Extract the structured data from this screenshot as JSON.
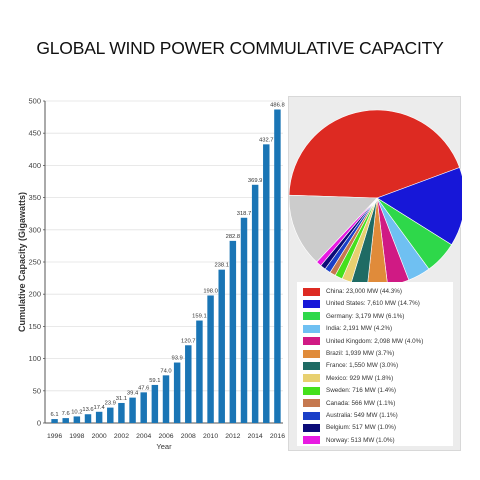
{
  "title": "GLOBAL WIND POWER COMMULATIVE CAPACITY",
  "colors": {
    "bar": "#1a75b5",
    "axis": "#555555",
    "grid": "#e2e2e2"
  },
  "chart_data": [
    {
      "type": "bar",
      "xlabel": "Year",
      "ylabel": "Cumulative Capacity (Gigawatts)",
      "ylim": [
        0,
        500
      ],
      "yticks": [
        "0",
        "50",
        "100",
        "150",
        "200",
        "250",
        "300",
        "350",
        "400",
        "450",
        "500"
      ],
      "xticks": [
        "1996",
        "1998",
        "2000",
        "2002",
        "2004",
        "2006",
        "2008",
        "2010",
        "2012",
        "2014",
        "2016"
      ],
      "categories": [
        "1996",
        "1997",
        "1998",
        "1999",
        "2000",
        "2001",
        "2002",
        "2003",
        "2004",
        "2005",
        "2006",
        "2007",
        "2008",
        "2009",
        "2010",
        "2011",
        "2012",
        "2013",
        "2014",
        "2015",
        "2016"
      ],
      "values": [
        6.1,
        7.6,
        10.2,
        13.6,
        17.4,
        23.9,
        31.1,
        39.4,
        47.6,
        59.1,
        74.0,
        93.9,
        120.7,
        159.1,
        198.0,
        238.1,
        282.8,
        318.7,
        369.9,
        432.7,
        486.8
      ],
      "data_labels": [
        "6.1",
        "7.6",
        "10.2",
        "13.6",
        "17.4",
        "23.9",
        "31.1",
        "39.4",
        "47.6",
        "59.1",
        "74.0",
        "93.9",
        "120.7",
        "159.1",
        "198.0",
        "238.1",
        "282.8",
        "318.7",
        "369.9",
        "432.7",
        "486.8"
      ],
      "grid": "horizontal"
    },
    {
      "type": "pie",
      "legend_placement": "bottom",
      "slices": [
        {
          "label": "China: 23,000 MW (44.3%)",
          "value": 44.3,
          "color": "#dd2a22"
        },
        {
          "label": "United States: 7,610 MW (14.7%)",
          "value": 14.7,
          "color": "#1717d8"
        },
        {
          "label": "Germany: 3,179 MW (6.1%)",
          "value": 6.1,
          "color": "#2ed84a"
        },
        {
          "label": "India: 2,191 MW (4.2%)",
          "value": 4.2,
          "color": "#6fc0f2"
        },
        {
          "label": "United Kingdom: 2,098 MW (4.0%)",
          "value": 4.0,
          "color": "#d01a84"
        },
        {
          "label": "Brazil: 1,939 MW (3.7%)",
          "value": 3.7,
          "color": "#e08b3a"
        },
        {
          "label": "France: 1,550 MW (3.0%)",
          "value": 3.0,
          "color": "#1f6b64"
        },
        {
          "label": "Mexico: 929 MW (1.8%)",
          "value": 1.8,
          "color": "#e8d070"
        },
        {
          "label": "Sweden: 716 MW (1.4%)",
          "value": 1.4,
          "color": "#45e01c"
        },
        {
          "label": "Canada: 566 MW (1.1%)",
          "value": 1.1,
          "color": "#c5784f"
        },
        {
          "label": "Australia: 549 MW (1.1%)",
          "value": 1.1,
          "color": "#1a3fc8"
        },
        {
          "label": "Belgium: 517 MW (1.0%)",
          "value": 1.0,
          "color": "#0c0c78"
        },
        {
          "label": "Norway: 513 MW (1.0%)",
          "value": 1.0,
          "color": "#e81ae2"
        },
        {
          "label": "",
          "value": 13.6,
          "color": "#cccccc"
        }
      ]
    }
  ]
}
